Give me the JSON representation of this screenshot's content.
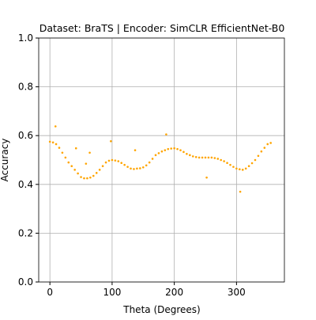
{
  "chart_data": {
    "type": "scatter",
    "title": "Dataset: BraTS | Encoder: SimCLR EfficientNet-B0",
    "xlabel": "Theta (Degrees)",
    "ylabel": "Accuracy",
    "color": "#ffa500",
    "x": [
      0,
      5,
      10,
      15,
      20,
      25,
      30,
      35,
      40,
      45,
      50,
      55,
      60,
      65,
      70,
      75,
      80,
      85,
      90,
      95,
      100,
      105,
      110,
      115,
      120,
      125,
      130,
      135,
      140,
      145,
      150,
      155,
      160,
      165,
      170,
      175,
      180,
      185,
      190,
      195,
      200,
      205,
      210,
      215,
      220,
      225,
      230,
      235,
      240,
      245,
      250,
      255,
      260,
      265,
      270,
      275,
      280,
      285,
      290,
      295,
      300,
      305,
      310,
      315,
      320,
      325,
      330,
      335,
      340,
      345,
      350,
      355,
      9,
      42,
      58,
      64,
      98,
      137,
      187,
      252,
      306
    ],
    "values": [
      0.575,
      0.572,
      0.565,
      0.55,
      0.53,
      0.51,
      0.49,
      0.475,
      0.46,
      0.445,
      0.43,
      0.425,
      0.425,
      0.428,
      0.435,
      0.447,
      0.46,
      0.475,
      0.49,
      0.497,
      0.5,
      0.498,
      0.495,
      0.488,
      0.48,
      0.472,
      0.465,
      0.463,
      0.465,
      0.466,
      0.47,
      0.478,
      0.49,
      0.505,
      0.52,
      0.528,
      0.535,
      0.54,
      0.545,
      0.547,
      0.548,
      0.545,
      0.54,
      0.533,
      0.525,
      0.52,
      0.515,
      0.512,
      0.51,
      0.51,
      0.51,
      0.51,
      0.51,
      0.508,
      0.505,
      0.5,
      0.495,
      0.488,
      0.48,
      0.472,
      0.465,
      0.462,
      0.46,
      0.465,
      0.475,
      0.487,
      0.5,
      0.517,
      0.535,
      0.55,
      0.565,
      0.57,
      0.638,
      0.548,
      0.485,
      0.53,
      0.577,
      0.54,
      0.605,
      0.428,
      0.37
    ],
    "xlim": [
      -18,
      377
    ],
    "ylim": [
      0,
      1
    ],
    "xticks": [
      0,
      100,
      200,
      300
    ],
    "yticks": [
      {
        "value": 0,
        "label": "0.0"
      },
      {
        "value": 0.2,
        "label": "0.2"
      },
      {
        "value": 0.4,
        "label": "0.4"
      },
      {
        "value": 0.6,
        "label": "0.6"
      },
      {
        "value": 0.8,
        "label": "0.8"
      },
      {
        "value": 1,
        "label": "1.0"
      }
    ],
    "grid": true
  }
}
